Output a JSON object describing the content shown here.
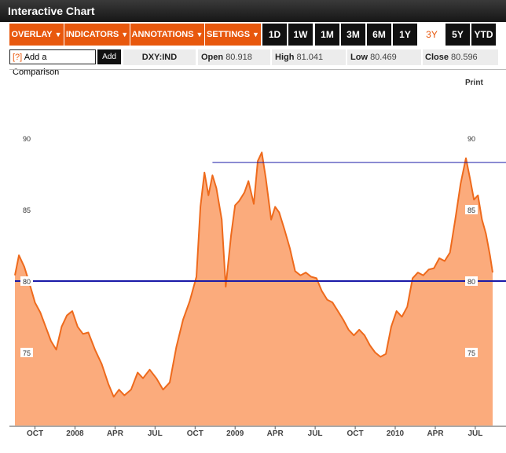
{
  "window": {
    "title": "Interactive Chart"
  },
  "toolbar": {
    "menus": [
      {
        "label": "OVERLAY"
      },
      {
        "label": "INDICATORS"
      },
      {
        "label": "ANNOTATIONS"
      },
      {
        "label": "SETTINGS"
      }
    ],
    "caret": "▼",
    "ranges": [
      "1D",
      "1W",
      "1M",
      "3M",
      "6M",
      "1Y",
      "3Y",
      "5Y",
      "YTD"
    ],
    "selected_range": "3Y"
  },
  "quote": {
    "compare_help": "[?]",
    "compare_label": "Add a Comparison",
    "add_label": "Add",
    "symbol": "DXY:IND",
    "open_label": "Open",
    "open_value": "80.918",
    "high_label": "High",
    "high_value": "81.041",
    "low_label": "Low",
    "low_value": "80.469",
    "close_label": "Close",
    "close_value": "80.596"
  },
  "print_label": "Print",
  "colors": {
    "accent": "#e8580d",
    "fill": "#fbab7c",
    "line": "#ee6a1c",
    "reference": "#1a1aa8"
  },
  "chart_data": {
    "type": "area",
    "title": "DXY:IND",
    "xlabel": "",
    "ylabel": "",
    "ylim": [
      70.5,
      93.5
    ],
    "yticks": [
      75,
      80,
      85,
      90
    ],
    "xticks": [
      {
        "label": "OCT",
        "t": 7.0
      },
      {
        "label": "2008",
        "t": 10.0
      },
      {
        "label": "APR",
        "t": 13.0
      },
      {
        "label": "JUL",
        "t": 16.0
      },
      {
        "label": "OCT",
        "t": 19.0
      },
      {
        "label": "2009",
        "t": 22.0
      },
      {
        "label": "APR",
        "t": 25.0
      },
      {
        "label": "JUL",
        "t": 28.0
      },
      {
        "label": "OCT",
        "t": 31.0
      },
      {
        "label": "2010",
        "t": 34.0
      },
      {
        "label": "APR",
        "t": 37.0
      },
      {
        "label": "JUL",
        "t": 40.0
      }
    ],
    "t_range": [
      5.5,
      41.3
    ],
    "t_unit": "months since 2007-06",
    "series": [
      {
        "name": "DXY",
        "points": [
          [
            5.5,
            80.4
          ],
          [
            5.8,
            81.8
          ],
          [
            6.2,
            81.0
          ],
          [
            6.6,
            79.8
          ],
          [
            7.0,
            78.5
          ],
          [
            7.4,
            77.8
          ],
          [
            7.8,
            76.8
          ],
          [
            8.2,
            75.8
          ],
          [
            8.6,
            75.2
          ],
          [
            9.0,
            76.8
          ],
          [
            9.4,
            77.6
          ],
          [
            9.8,
            77.9
          ],
          [
            10.2,
            76.8
          ],
          [
            10.6,
            76.3
          ],
          [
            11.0,
            76.4
          ],
          [
            11.5,
            75.2
          ],
          [
            12.0,
            74.2
          ],
          [
            12.5,
            72.8
          ],
          [
            12.9,
            71.9
          ],
          [
            13.3,
            72.4
          ],
          [
            13.7,
            72.0
          ],
          [
            14.2,
            72.4
          ],
          [
            14.7,
            73.6
          ],
          [
            15.1,
            73.2
          ],
          [
            15.6,
            73.8
          ],
          [
            16.1,
            73.2
          ],
          [
            16.6,
            72.4
          ],
          [
            17.1,
            72.9
          ],
          [
            17.6,
            75.4
          ],
          [
            18.1,
            77.3
          ],
          [
            18.6,
            78.6
          ],
          [
            19.1,
            80.3
          ],
          [
            19.4,
            85.2
          ],
          [
            19.7,
            87.6
          ],
          [
            20.0,
            86.0
          ],
          [
            20.3,
            87.4
          ],
          [
            20.6,
            86.5
          ],
          [
            21.0,
            84.3
          ],
          [
            21.3,
            79.6
          ],
          [
            21.7,
            83.2
          ],
          [
            22.0,
            85.3
          ],
          [
            22.3,
            85.6
          ],
          [
            22.7,
            86.2
          ],
          [
            23.0,
            87.0
          ],
          [
            23.4,
            85.4
          ],
          [
            23.7,
            88.4
          ],
          [
            24.0,
            89.0
          ],
          [
            24.3,
            87.2
          ],
          [
            24.7,
            84.3
          ],
          [
            25.0,
            85.2
          ],
          [
            25.3,
            84.8
          ],
          [
            25.7,
            83.6
          ],
          [
            26.1,
            82.3
          ],
          [
            26.5,
            80.7
          ],
          [
            26.9,
            80.4
          ],
          [
            27.3,
            80.6
          ],
          [
            27.7,
            80.3
          ],
          [
            28.1,
            80.2
          ],
          [
            28.5,
            79.3
          ],
          [
            28.9,
            78.7
          ],
          [
            29.3,
            78.5
          ],
          [
            29.7,
            77.9
          ],
          [
            30.1,
            77.3
          ],
          [
            30.5,
            76.6
          ],
          [
            30.9,
            76.2
          ],
          [
            31.3,
            76.6
          ],
          [
            31.7,
            76.2
          ],
          [
            32.1,
            75.5
          ],
          [
            32.5,
            75.0
          ],
          [
            32.9,
            74.7
          ],
          [
            33.3,
            74.9
          ],
          [
            33.7,
            76.8
          ],
          [
            34.1,
            77.9
          ],
          [
            34.5,
            77.5
          ],
          [
            34.9,
            78.2
          ],
          [
            35.3,
            80.2
          ],
          [
            35.7,
            80.6
          ],
          [
            36.1,
            80.4
          ],
          [
            36.5,
            80.8
          ],
          [
            36.9,
            80.9
          ],
          [
            37.3,
            81.6
          ],
          [
            37.7,
            81.4
          ],
          [
            38.1,
            82.0
          ],
          [
            38.5,
            84.3
          ],
          [
            38.9,
            86.8
          ],
          [
            39.3,
            88.6
          ],
          [
            39.6,
            87.2
          ],
          [
            39.9,
            85.7
          ],
          [
            40.2,
            86.0
          ],
          [
            40.5,
            84.3
          ],
          [
            40.8,
            83.3
          ],
          [
            41.1,
            81.8
          ],
          [
            41.3,
            80.6
          ]
        ]
      }
    ],
    "reference_lines": [
      {
        "y": 80.0,
        "from_t": 5.5,
        "color": "#1a1aa8",
        "weight": "thick"
      },
      {
        "y": 88.3,
        "from_t": 20.3,
        "color": "#1a1aa8",
        "weight": "thin"
      }
    ],
    "grid": false,
    "legend": "none"
  }
}
